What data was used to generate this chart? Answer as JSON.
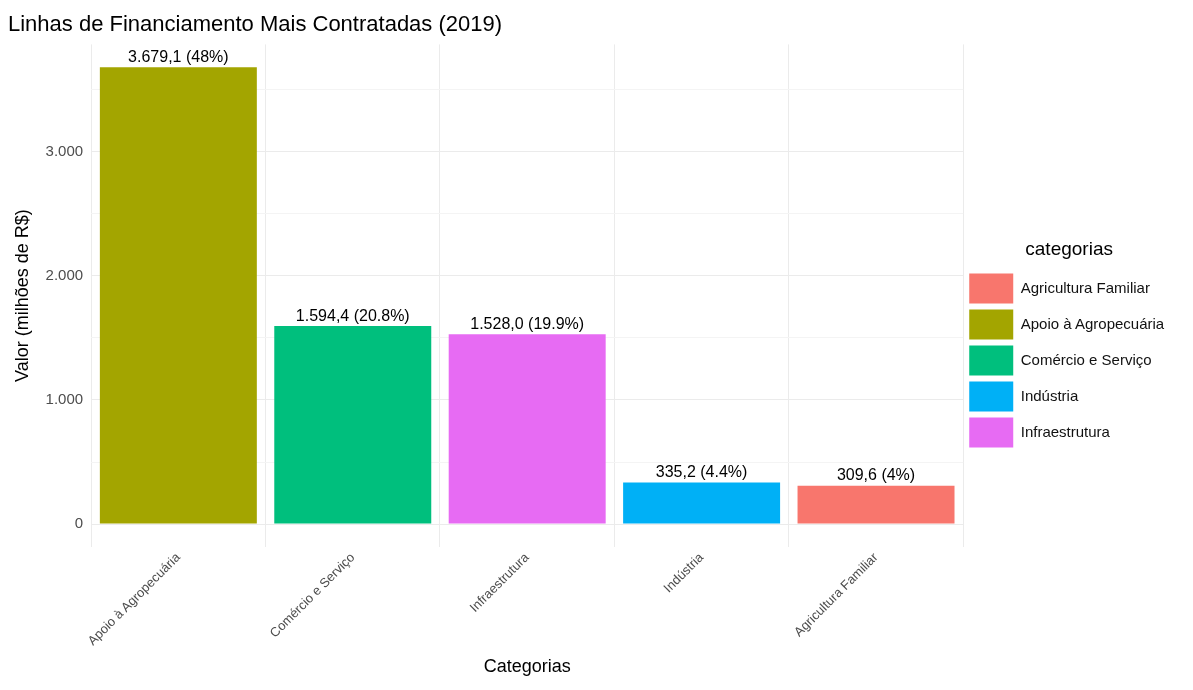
{
  "chart_data": {
    "type": "bar",
    "title": "Linhas de Financiamento Mais Contratadas (2019)",
    "xlabel": "Categorias",
    "ylabel": "Valor (milhões de R$)",
    "legend_title": "categorias",
    "legend": "right",
    "grid": true,
    "categories": [
      "Apoio à Agropecuária",
      "Comércio e Serviço",
      "Infraestrutura",
      "Indústria",
      "Agricultura Familiar"
    ],
    "series": [
      {
        "name": "Agricultura Familiar",
        "color": "#f8766d",
        "values": [
          null,
          null,
          null,
          null,
          309.6
        ],
        "value_labels": [
          null,
          null,
          null,
          null,
          "309,6 (4%)"
        ]
      },
      {
        "name": "Apoio à Agropecuária",
        "color": "#a3a500",
        "values": [
          3679.1,
          null,
          null,
          null,
          null
        ],
        "value_labels": [
          "3.679,1 (48%)",
          null,
          null,
          null,
          null
        ]
      },
      {
        "name": "Comércio e Serviço",
        "color": "#00bf7d",
        "values": [
          null,
          1594.4,
          null,
          null,
          null
        ],
        "value_labels": [
          null,
          "1.594,4 (20.8%)",
          null,
          null,
          null
        ]
      },
      {
        "name": "Indústria",
        "color": "#00b0f6",
        "values": [
          null,
          null,
          null,
          335.2,
          null
        ],
        "value_labels": [
          null,
          null,
          null,
          "335,2 (4.4%)",
          null
        ]
      },
      {
        "name": "Infraestrutura",
        "color": "#e76bf3",
        "values": [
          null,
          null,
          1528.0,
          null,
          null
        ],
        "value_labels": [
          null,
          null,
          "1.528,0 (19.9%)",
          null,
          null
        ]
      }
    ],
    "ylim": [
      -184,
      3863
    ],
    "yticks": [
      0,
      {
        "value": 500,
        "label": null
      },
      {
        "value": 1000,
        "label": "1.000"
      },
      {
        "value": 1500,
        "label": null
      },
      {
        "value": 2000,
        "label": "2.000"
      },
      {
        "value": 2500,
        "label": null
      },
      {
        "value": 3000,
        "label": "3.000"
      },
      {
        "value": 3500,
        "label": null
      }
    ]
  }
}
